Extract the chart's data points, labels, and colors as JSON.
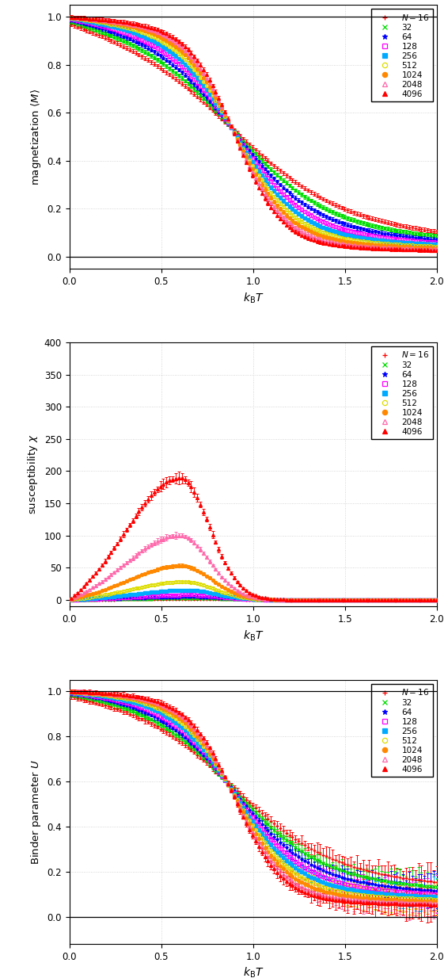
{
  "N_values": [
    16,
    32,
    64,
    128,
    256,
    512,
    1024,
    2048,
    4096
  ],
  "colors": [
    "#ff0000",
    "#00dd00",
    "#0000ff",
    "#ff00ff",
    "#00aaff",
    "#dddd00",
    "#ff8800",
    "#ff66aa",
    "#ff0000"
  ],
  "markers": [
    "+",
    "x",
    "*",
    "s",
    "s",
    "o",
    "o",
    "^",
    "^"
  ],
  "filled": [
    false,
    false,
    false,
    false,
    true,
    false,
    true,
    false,
    true
  ],
  "xlim": [
    0,
    2
  ],
  "xlabel": "$k_{\\mathrm{B}}T$",
  "panel1_ylabel": "magnetization $\\langle M \\rangle$",
  "panel1_ylim": [
    -0.05,
    1.05
  ],
  "panel1_yticks": [
    0,
    0.2,
    0.4,
    0.6,
    0.8,
    1.0
  ],
  "panel2_ylabel": "susceptibility $\\chi$",
  "panel2_ylim": [
    -10,
    400
  ],
  "panel2_yticks": [
    0,
    50,
    100,
    150,
    200,
    250,
    300,
    350,
    400
  ],
  "panel3_ylabel": "Binder parameter $U$",
  "panel3_ylim": [
    -0.12,
    1.05
  ],
  "panel3_yticks": [
    0,
    0.2,
    0.4,
    0.6,
    0.8,
    1.0
  ],
  "legend_labels": [
    "$N = 16$",
    "32",
    "64",
    "128",
    "256",
    "512",
    "1024",
    "2048",
    "4096"
  ],
  "figsize": [
    5.66,
    12.34
  ],
  "dpi": 100
}
